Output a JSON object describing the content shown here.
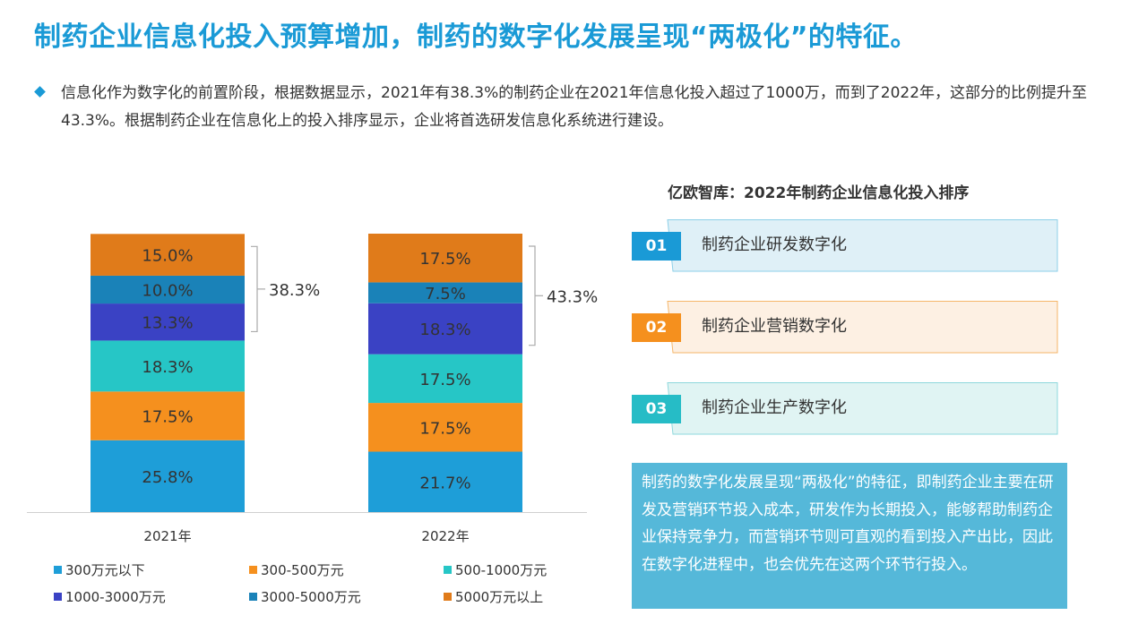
{
  "title": "制药企业信息化投入预算增加，制药的数字化发展呈现“两极化”的特征。",
  "intro": "信息化作为数字化的前置阶段，根据数据显示，2021年有38.3%的制药企业在2021年信息化投入超过了1000万，而到了2022年，这部分的比例提升至43.3%。根据制药企业在信息化上的投入排序显示，企业将首选研发信息化系统进行建设。",
  "chart_data": {
    "type": "bar",
    "stacked": true,
    "categories": [
      "2021年",
      "2022年"
    ],
    "series": [
      {
        "name": "300万元以下",
        "color": "#1e9ed8",
        "values": [
          25.8,
          21.7
        ]
      },
      {
        "name": "300-500万元",
        "color": "#f5901e",
        "values": [
          17.5,
          17.5
        ]
      },
      {
        "name": "500-1000万元",
        "color": "#26c6c6",
        "values": [
          18.3,
          17.5
        ]
      },
      {
        "name": "1000-3000万元",
        "color": "#3a42c4",
        "values": [
          13.3,
          18.3
        ]
      },
      {
        "name": "3000-5000万元",
        "color": "#1a82b8",
        "values": [
          10.0,
          7.5
        ]
      },
      {
        "name": "5000万元以上",
        "color": "#e07b1a",
        "values": [
          15.0,
          17.5
        ]
      }
    ],
    "value_labels": [
      [
        "25.8%",
        "17.5%",
        "18.3%",
        "13.3%",
        "10.0%",
        "15.0%"
      ],
      [
        "21.7%",
        "17.5%",
        "17.5%",
        "18.3%",
        "7.5%",
        "17.5%"
      ]
    ],
    "bracket_labels": [
      "38.3%",
      "43.3%"
    ],
    "legend_position": "bottom"
  },
  "ranking": {
    "title": "亿欧智库：2022年制药企业信息化投入排序",
    "items": [
      {
        "num": "01",
        "label": "制药企业研发数字化",
        "accent": "#1a9ad6",
        "fill": "#dff0f7",
        "stroke": "#8ccfe8"
      },
      {
        "num": "02",
        "label": "制药企业营销数字化",
        "accent": "#f5901e",
        "fill": "#fdf0e3",
        "stroke": "#f5b66a"
      },
      {
        "num": "03",
        "label": "制药企业生产数字化",
        "accent": "#26bcc6",
        "fill": "#e0f4f3",
        "stroke": "#8ed8dc"
      }
    ]
  },
  "summary": "制药的数字化发展呈现“两极化”的特征，即制药企业主要在研发及营销环节投入成本，研发作为长期投入，能够帮助制药企业保持竞争力，而营销环节则可直观的看到投入产出比，因此在数字化进程中，也会优先在这两个环节行投入。",
  "colors": {
    "accent": "#1a9ad6",
    "summary_bg": "#55b8d9"
  }
}
